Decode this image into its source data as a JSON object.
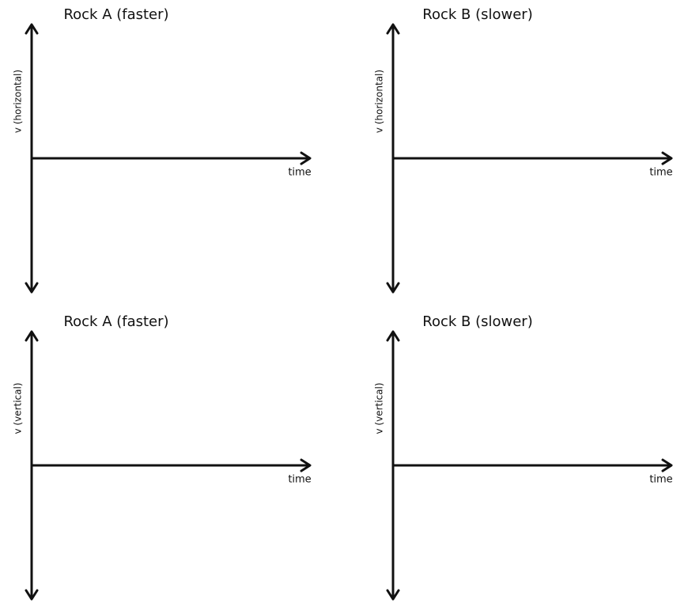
{
  "panels": [
    {
      "title": "Rock A (faster)",
      "y_label": "v (horizontal)",
      "x_label": "time"
    },
    {
      "title": "Rock B (slower)",
      "y_label": "v (horizontal)",
      "x_label": "time"
    },
    {
      "title": "Rock A (faster)",
      "y_label": "v (vertical)",
      "x_label": "time"
    },
    {
      "title": "Rock B (slower)",
      "y_label": "v (vertical)",
      "x_label": "time"
    }
  ]
}
